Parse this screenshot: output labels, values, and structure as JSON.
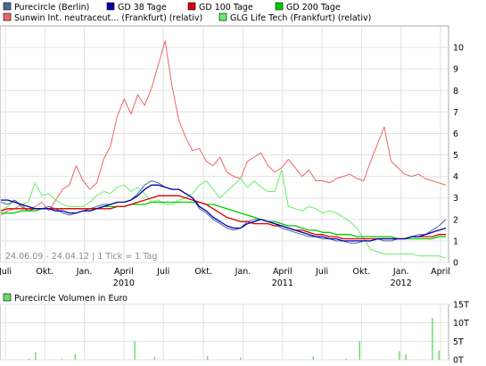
{
  "legend": [
    {
      "label": "Purecircle (Berlin)",
      "color": "#4a6a9a"
    },
    {
      "label": "GD 38 Tage",
      "color": "#0000aa"
    },
    {
      "label": "GD 100 Tage",
      "color": "#dd0000"
    },
    {
      "label": "GD 200 Tage",
      "color": "#00cc00"
    },
    {
      "label": "Sunwin Int. neutraceut... (Frankfurt) (relativ)",
      "color": "#ee6666"
    },
    {
      "label": "GLG Life Tech (Frankfurt) (relativ)",
      "color": "#66ee66"
    }
  ],
  "date_range_note": "24.06.09 - 24.04.12 | 1 Tick = 1 Tag",
  "volume_title": "Purecircle Volumen in Euro",
  "volume_color": "#66dd66",
  "chart_data": [
    {
      "type": "line",
      "x_tick_labels": [
        "Juli",
        "Okt.",
        "Jan.",
        "April",
        "Juli",
        "Okt.",
        "Jan.",
        "April",
        "Juli",
        "Okt.",
        "Jan.",
        "April"
      ],
      "x_year_labels": [
        "2010",
        "2011",
        "2012"
      ],
      "y_tick_labels": [
        "0",
        "1",
        "2",
        "3",
        "4",
        "5",
        "6",
        "7",
        "8",
        "9",
        "10"
      ],
      "ylim": [
        0,
        11
      ],
      "grid": true,
      "series": [
        {
          "name": "Purecircle (Berlin)",
          "color": "#4a6a9a",
          "values": [
            2.8,
            2.7,
            2.9,
            2.6,
            2.4,
            2.5,
            2.5,
            2.6,
            2.5,
            2.3,
            2.2,
            2.3,
            2.4,
            2.5,
            2.6,
            2.7,
            2.7,
            2.8,
            2.8,
            2.9,
            3.2,
            3.6,
            3.8,
            3.7,
            3.5,
            3.4,
            3.4,
            3.2,
            3.0,
            2.5,
            2.3,
            2.0,
            1.8,
            1.6,
            1.5,
            1.6,
            1.9,
            2.0,
            2.0,
            1.9,
            1.8,
            1.6,
            1.5,
            1.4,
            1.3,
            1.2,
            1.2,
            1.1,
            1.1,
            1.0,
            1.0,
            0.9,
            0.9,
            1.0,
            1.0,
            1.1,
            1.0,
            1.0,
            1.1,
            1.1,
            1.2,
            1.3,
            1.3,
            1.5,
            1.7,
            2.0
          ]
        },
        {
          "name": "GD 38 Tage",
          "color": "#0000aa",
          "values": [
            2.9,
            2.9,
            2.8,
            2.7,
            2.6,
            2.5,
            2.5,
            2.5,
            2.4,
            2.4,
            2.3,
            2.3,
            2.4,
            2.4,
            2.5,
            2.6,
            2.7,
            2.8,
            2.8,
            2.9,
            3.1,
            3.4,
            3.6,
            3.6,
            3.5,
            3.4,
            3.4,
            3.2,
            3.0,
            2.6,
            2.4,
            2.1,
            1.9,
            1.7,
            1.6,
            1.6,
            1.8,
            1.9,
            2.0,
            1.9,
            1.8,
            1.7,
            1.6,
            1.5,
            1.4,
            1.3,
            1.2,
            1.2,
            1.1,
            1.1,
            1.0,
            1.0,
            1.0,
            1.0,
            1.0,
            1.1,
            1.1,
            1.1,
            1.1,
            1.1,
            1.2,
            1.2,
            1.3,
            1.4,
            1.5,
            1.6
          ]
        },
        {
          "name": "GD 100 Tage",
          "color": "#dd0000",
          "values": [
            2.4,
            2.5,
            2.5,
            2.5,
            2.5,
            2.5,
            2.5,
            2.5,
            2.5,
            2.5,
            2.5,
            2.5,
            2.5,
            2.5,
            2.5,
            2.5,
            2.5,
            2.6,
            2.6,
            2.7,
            2.8,
            2.9,
            3.0,
            3.1,
            3.1,
            3.1,
            3.1,
            3.0,
            2.9,
            2.8,
            2.7,
            2.5,
            2.3,
            2.1,
            2.0,
            1.9,
            1.9,
            1.8,
            1.8,
            1.8,
            1.7,
            1.7,
            1.6,
            1.5,
            1.5,
            1.4,
            1.3,
            1.3,
            1.2,
            1.2,
            1.1,
            1.1,
            1.1,
            1.1,
            1.1,
            1.1,
            1.1,
            1.1,
            1.1,
            1.1,
            1.2,
            1.2,
            1.2,
            1.2,
            1.3,
            1.3
          ]
        },
        {
          "name": "GD 200 Tage",
          "color": "#00cc00",
          "values": [
            2.3,
            2.3,
            2.3,
            2.4,
            2.4,
            2.4,
            2.5,
            2.5,
            2.5,
            2.5,
            2.5,
            2.5,
            2.5,
            2.5,
            2.5,
            2.6,
            2.6,
            2.6,
            2.6,
            2.7,
            2.7,
            2.7,
            2.8,
            2.8,
            2.8,
            2.8,
            2.8,
            2.8,
            2.8,
            2.8,
            2.7,
            2.7,
            2.6,
            2.5,
            2.4,
            2.3,
            2.2,
            2.1,
            2.0,
            1.9,
            1.9,
            1.8,
            1.7,
            1.7,
            1.6,
            1.5,
            1.5,
            1.4,
            1.4,
            1.3,
            1.3,
            1.3,
            1.2,
            1.2,
            1.2,
            1.2,
            1.2,
            1.2,
            1.1,
            1.1,
            1.1,
            1.1,
            1.1,
            1.1,
            1.2,
            1.2
          ]
        },
        {
          "name": "Sunwin Int. neutraceut... (Frankfurt) (relativ)",
          "color": "#ee6666",
          "values": [
            2.2,
            2.4,
            2.5,
            2.7,
            2.4,
            2.6,
            2.8,
            2.4,
            2.9,
            3.4,
            3.6,
            4.5,
            3.8,
            3.4,
            3.7,
            4.8,
            5.4,
            6.8,
            7.6,
            6.9,
            7.8,
            7.3,
            8.1,
            9.2,
            10.3,
            8.2,
            6.6,
            5.8,
            5.2,
            5.3,
            4.7,
            4.5,
            4.9,
            4.2,
            4.0,
            3.9,
            4.7,
            4.9,
            5.1,
            4.5,
            4.2,
            4.4,
            4.8,
            4.4,
            4.0,
            4.3,
            3.8,
            3.8,
            3.7,
            3.9,
            4.0,
            4.1,
            3.9,
            3.8,
            4.7,
            5.5,
            6.3,
            4.7,
            4.4,
            4.1,
            4.0,
            4.1,
            3.9,
            3.8,
            3.7,
            3.6
          ]
        },
        {
          "name": "GLG Life Tech (Frankfurt) (relativ)",
          "color": "#66ee66",
          "values": [
            2.4,
            2.6,
            2.9,
            2.7,
            2.8,
            3.7,
            3.1,
            3.2,
            2.9,
            2.7,
            2.6,
            2.6,
            2.6,
            2.8,
            3.1,
            3.3,
            3.2,
            3.5,
            3.6,
            3.3,
            3.5,
            3.2,
            2.8,
            2.9,
            2.7,
            2.7,
            2.9,
            3.0,
            3.2,
            3.6,
            3.8,
            3.4,
            3.0,
            3.3,
            3.6,
            3.9,
            3.5,
            3.8,
            3.5,
            3.3,
            3.3,
            4.3,
            2.6,
            2.5,
            2.4,
            2.6,
            2.5,
            2.3,
            2.4,
            2.3,
            2.1,
            1.9,
            1.6,
            1.1,
            0.6,
            0.5,
            0.4,
            0.4,
            0.4,
            0.4,
            0.4,
            0.3,
            0.3,
            0.3,
            0.3,
            0.2
          ]
        }
      ]
    },
    {
      "type": "bar",
      "title": "Purecircle Volumen in Euro",
      "y_tick_labels": [
        "0T",
        "5T",
        "10T",
        "15T"
      ],
      "ylim": [
        0,
        15
      ],
      "values": [
        0,
        0,
        0,
        0,
        0.3,
        2.0,
        0,
        0,
        0,
        0.2,
        0,
        1.6,
        0,
        0,
        0,
        0,
        0,
        0,
        0,
        0,
        5.0,
        0,
        0,
        0.8,
        0,
        0,
        0,
        0,
        0,
        0,
        0,
        1.0,
        0,
        0,
        0,
        0,
        0.6,
        0,
        0,
        0,
        0,
        0,
        0,
        0,
        0,
        0,
        0,
        0.9,
        0,
        0,
        0,
        0,
        0.3,
        0,
        5.0,
        0,
        0,
        0,
        0,
        0,
        2.3,
        1.5,
        0,
        0,
        0,
        11.3,
        2.5,
        0
      ]
    }
  ]
}
